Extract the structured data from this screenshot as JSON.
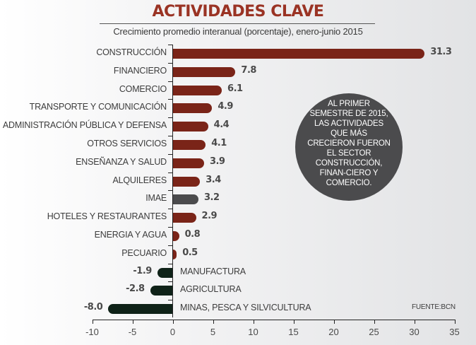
{
  "header": {
    "title": "ACTIVIDADES CLAVE",
    "subtitle": "Crecimiento promedio interanual (porcentaje), enero-junio 2015"
  },
  "callout": {
    "text": "AL PRIMER SEMESTRE DE 2015, LAS ACTIVIDADES QUE MÁS CRECIERON FUERON EL SECTOR CONSTRUCCIÓN, FINAN-CIERO Y COMERCIO."
  },
  "source": "FUENTE:BCN",
  "colors": {
    "title": "#9a3324",
    "positive_bar": "#7a2418",
    "imae_bar": "#4b4b4d",
    "negative_bar": "#0f2218",
    "callout_bg": "#4b4b4d"
  },
  "rows": [
    {
      "label": "CONSTRUCCIÓN",
      "value": 31.3,
      "value_label": "31.3"
    },
    {
      "label": "FINANCIERO",
      "value": 7.8,
      "value_label": "7.8"
    },
    {
      "label": "COMERCIO",
      "value": 6.1,
      "value_label": "6.1"
    },
    {
      "label": "TRANSPORTE Y COMUNICACIÓN",
      "value": 4.9,
      "value_label": "4.9"
    },
    {
      "label": "ADMINISTRACIÓN PÚBLICA Y DEFENSA",
      "value": 4.4,
      "value_label": "4.4"
    },
    {
      "label": "OTROS SERVICIOS",
      "value": 4.1,
      "value_label": "4.1"
    },
    {
      "label": "ENSEÑANZA Y SALUD",
      "value": 3.9,
      "value_label": "3.9"
    },
    {
      "label": "ALQUILERES",
      "value": 3.4,
      "value_label": "3.4"
    },
    {
      "label": "IMAE",
      "value": 3.2,
      "value_label": "3.2"
    },
    {
      "label": "HOTELES Y RESTAURANTES",
      "value": 2.9,
      "value_label": "2.9"
    },
    {
      "label": "ENERGIA Y AGUA",
      "value": 0.8,
      "value_label": "0.8"
    },
    {
      "label": "PECUARIO",
      "value": 0.5,
      "value_label": "0.5"
    },
    {
      "label": "MANUFACTURA",
      "value": -1.9,
      "value_label": "-1.9"
    },
    {
      "label": "AGRICULTURA",
      "value": -2.8,
      "value_label": "-2.8"
    },
    {
      "label": "MINAS, PESCA Y SILVICULTURA",
      "value": -8.0,
      "value_label": "-8.0"
    }
  ],
  "x_axis": {
    "ticks": [
      "-10",
      "-5",
      "0",
      "5",
      "10",
      "15",
      "20",
      "25",
      "30",
      "35"
    ]
  },
  "chart_data": {
    "type": "bar",
    "orientation": "horizontal",
    "title": "ACTIVIDADES CLAVE",
    "subtitle": "Crecimiento promedio interanual (porcentaje), enero-junio 2015",
    "categories": [
      "CONSTRUCCIÓN",
      "FINANCIERO",
      "COMERCIO",
      "TRANSPORTE Y COMUNICACIÓN",
      "ADMINISTRACIÓN PÚBLICA Y DEFENSA",
      "OTROS SERVICIOS",
      "ENSEÑANZA Y SALUD",
      "ALQUILERES",
      "IMAE",
      "HOTELES Y RESTAURANTES",
      "ENERGIA Y AGUA",
      "PECUARIO",
      "MANUFACTURA",
      "AGRICULTURA",
      "MINAS, PESCA Y SILVICULTURA"
    ],
    "values": [
      31.3,
      7.8,
      6.1,
      4.9,
      4.4,
      4.1,
      3.9,
      3.4,
      3.2,
      2.9,
      0.8,
      0.5,
      -1.9,
      -2.8,
      -8.0
    ],
    "xlabel": "",
    "ylabel": "",
    "xlim": [
      -10,
      35
    ],
    "xticks": [
      -10,
      -5,
      0,
      5,
      10,
      15,
      20,
      25,
      30,
      35
    ],
    "grid": false,
    "legend": null,
    "annotations": [
      "AL PRIMER SEMESTRE DE 2015, LAS ACTIVIDADES QUE MÁS CRECIERON FUERON EL SECTOR CONSTRUCCIÓN, FINANCIERO Y COMERCIO.",
      "FUENTE:BCN"
    ]
  }
}
